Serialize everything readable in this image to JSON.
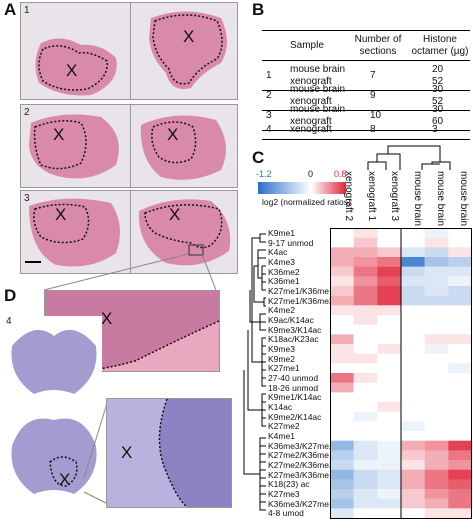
{
  "panels": {
    "A": "A",
    "B": "B",
    "C": "C",
    "D": "D"
  },
  "panel_a": {
    "rows": [
      {
        "num": "1"
      },
      {
        "num": "2"
      },
      {
        "num": "3"
      }
    ],
    "tumor_mark": "X"
  },
  "panel_d": {
    "num": "4",
    "tumor_mark": "X"
  },
  "table": {
    "headers": {
      "sample": "Sample",
      "sections": "Number of sections",
      "histone": "Histone octamer (µg)"
    },
    "rows": [
      {
        "id": "1",
        "samples": [
          "mouse brain",
          "xenograft"
        ],
        "sections": "7",
        "histone": [
          "20",
          "52"
        ]
      },
      {
        "id": "2",
        "samples": [
          "mouse brain",
          "xenograft"
        ],
        "sections": "9",
        "histone": [
          "30",
          "52"
        ]
      },
      {
        "id": "3",
        "samples": [
          "mouse brain",
          "xenograft"
        ],
        "sections": "10",
        "histone": [
          "30",
          "60"
        ]
      },
      {
        "id": "4",
        "samples": [
          "xenograft"
        ],
        "sections": "8",
        "histone": [
          "3"
        ]
      }
    ]
  },
  "heatmap": {
    "legend": {
      "min": "-1.2",
      "mid": "0",
      "max": "0.8",
      "caption": "log2 (normalized ratios)"
    },
    "columns": [
      "xenograft 2",
      "xenograft 1",
      "xenograft 3",
      "mouse brain 3",
      "mouse brain 2",
      "mouse brain 1"
    ],
    "rows": [
      "K9me1",
      "9-17 unmod",
      "K4ac",
      "K4me3",
      "K36me2",
      "K36me1",
      "K27me1/K36me1",
      "K27me1/K36me2",
      "K4me2",
      "K9ac/K14ac",
      "K9me3/K14ac",
      "K18ac/K23ac",
      "K9me3",
      "K9me2",
      "K27me1",
      "27-40 unmod",
      "18-26 unmod",
      "K9me1/K14ac",
      "K14ac",
      "K9me2/K14ac",
      "K27me2",
      "K4me1",
      "K36me3/K27me2",
      "K27me2/K36me1",
      "K27me2/K36me2",
      "K27me3/K36me1",
      "K18(23) ac",
      "K27me3",
      "K36me3/K27me1",
      "4-8 umod"
    ],
    "colors": {
      "neg": "#2b6fc8",
      "pos": "#e0263a",
      "zero": "#ffffff"
    }
  },
  "chart_data": {
    "type": "heatmap",
    "x": [
      "xenograft 2",
      "xenograft 1",
      "xenograft 3",
      "mouse brain 3",
      "mouse brain 2",
      "mouse brain 1"
    ],
    "y": [
      "K9me1",
      "9-17 unmod",
      "K4ac",
      "K4me3",
      "K36me2",
      "K36me1",
      "K27me1/K36me1",
      "K27me1/K36me2",
      "K4me2",
      "K9ac/K14ac",
      "K9me3/K14ac",
      "K18ac/K23ac",
      "K9me3",
      "K9me2",
      "K27me1",
      "27-40 unmod",
      "18-26 unmod",
      "K9me1/K14ac",
      "K14ac",
      "K9me2/K14ac",
      "K27me2",
      "K4me1",
      "K36me3/K27me2",
      "K27me2/K36me1",
      "K27me2/K36me2",
      "K27me3/K36me1",
      "K18(23) ac",
      "K27me3",
      "K36me3/K27me1",
      "4-8 umod"
    ],
    "values": [
      [
        0.0,
        0.1,
        0.0,
        0.0,
        -0.1,
        0.0
      ],
      [
        0.0,
        0.2,
        0.0,
        0.0,
        0.1,
        0.0
      ],
      [
        0.3,
        0.3,
        0.2,
        -0.2,
        -0.3,
        0.1
      ],
      [
        0.3,
        0.4,
        0.5,
        -1.0,
        -0.5,
        -0.4
      ],
      [
        0.2,
        0.5,
        0.7,
        -0.3,
        -0.2,
        -0.2
      ],
      [
        0.1,
        0.4,
        0.6,
        -0.2,
        -0.2,
        -0.1
      ],
      [
        0.2,
        0.5,
        0.7,
        -0.3,
        -0.2,
        -0.3
      ],
      [
        0.3,
        0.5,
        0.7,
        -0.3,
        -0.3,
        -0.3
      ],
      [
        0.1,
        0.1,
        0.1,
        0.0,
        0.0,
        0.0
      ],
      [
        0.0,
        0.1,
        0.0,
        0.0,
        0.0,
        0.0
      ],
      [
        0.0,
        0.0,
        0.0,
        0.0,
        0.0,
        0.0
      ],
      [
        0.3,
        0.0,
        0.0,
        0.0,
        0.1,
        0.1
      ],
      [
        0.1,
        0.0,
        0.1,
        0.0,
        -0.1,
        0.0
      ],
      [
        0.1,
        0.1,
        0.0,
        0.0,
        0.0,
        0.0
      ],
      [
        0.0,
        0.0,
        0.0,
        0.0,
        0.0,
        -0.1
      ],
      [
        0.5,
        0.1,
        0.0,
        0.0,
        0.0,
        0.0
      ],
      [
        0.3,
        0.0,
        0.0,
        0.0,
        0.0,
        0.0
      ],
      [
        0.0,
        0.0,
        0.0,
        0.0,
        0.0,
        0.0
      ],
      [
        0.0,
        0.0,
        0.1,
        0.0,
        0.0,
        0.0
      ],
      [
        0.0,
        -0.1,
        0.0,
        0.0,
        0.0,
        0.0
      ],
      [
        0.0,
        0.0,
        0.0,
        -0.1,
        0.0,
        0.0
      ],
      [
        0.0,
        0.0,
        0.0,
        0.0,
        0.0,
        0.0
      ],
      [
        -0.6,
        -0.2,
        -0.1,
        0.3,
        0.4,
        0.7
      ],
      [
        -0.4,
        -0.2,
        -0.1,
        0.2,
        0.3,
        0.5
      ],
      [
        -0.3,
        -0.1,
        -0.1,
        0.1,
        0.3,
        0.4
      ],
      [
        -0.6,
        -0.3,
        -0.2,
        0.3,
        0.5,
        0.7
      ],
      [
        -0.5,
        -0.3,
        -0.2,
        0.3,
        0.5,
        0.6
      ],
      [
        -0.4,
        -0.2,
        -0.1,
        0.2,
        0.4,
        0.5
      ],
      [
        -0.5,
        -0.2,
        -0.2,
        0.2,
        0.3,
        0.5
      ],
      [
        -0.2,
        0.0,
        0.0,
        0.0,
        0.1,
        0.1
      ]
    ],
    "scale": [
      -1.2,
      0.8
    ]
  }
}
